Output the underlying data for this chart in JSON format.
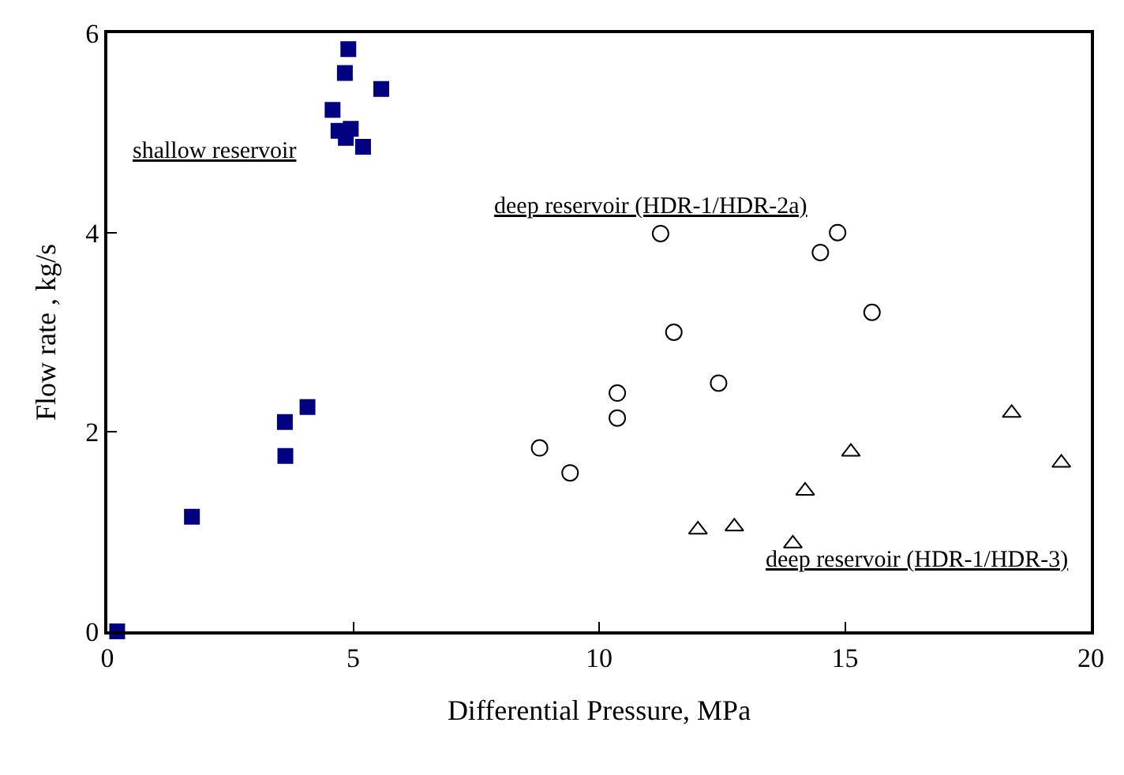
{
  "chart_data": {
    "type": "scatter",
    "xlabel": "Differential Pressure, MPa",
    "ylabel": "Flow rate , kg/s",
    "xlim": [
      0,
      20
    ],
    "xticks": [
      0,
      5,
      10,
      15,
      20
    ],
    "ylim": [
      0,
      6
    ],
    "yticks": [
      0,
      2,
      4,
      6
    ],
    "legend": false,
    "series": [
      {
        "name": "shallow reservoir",
        "color": "#000080",
        "marker": "square",
        "x": [
          4.9,
          4.83,
          5.57,
          4.58,
          4.7,
          4.85,
          4.95,
          5.1,
          5.2,
          4.07,
          3.61,
          3.62,
          1.72,
          0.2
        ],
        "values": [
          5.84,
          5.6,
          5.44,
          5.23,
          5.02,
          4.95,
          5.04,
          null,
          4.86,
          2.25,
          2.1,
          1.76,
          1.15,
          0
        ]
      },
      {
        "name": "deep reservoir (HDR-1/HDR-2a)",
        "color": "#000000",
        "marker": "circle",
        "x": [
          11.25,
          14.85,
          14.5,
          15.55,
          11.52,
          12.43,
          10.37,
          10.37,
          8.79,
          9.41
        ],
        "values": [
          3.99,
          4.0,
          3.8,
          3.2,
          3.0,
          2.49,
          2.39,
          2.14,
          1.84,
          1.59
        ]
      },
      {
        "name": "deep reservoir (HDR-1/HDR-3)",
        "color": "#000000",
        "marker": "triangle",
        "x": [
          18.39,
          15.12,
          19.4,
          14.19,
          12.01,
          12.75,
          13.94
        ],
        "values": [
          2.19,
          1.8,
          1.69,
          1.41,
          1.02,
          1.05,
          0.88
        ]
      }
    ]
  }
}
